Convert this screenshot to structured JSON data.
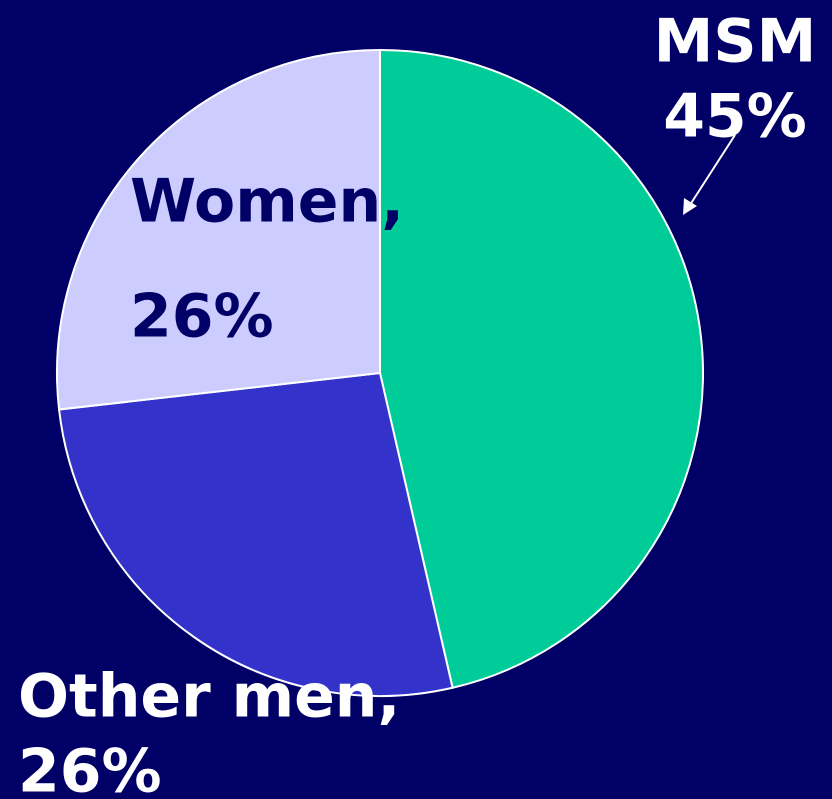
{
  "chart_data": {
    "type": "pie",
    "categories": [
      "MSM",
      "Other men,",
      "Women,"
    ],
    "values": [
      45,
      26,
      26
    ],
    "value_labels": [
      "45%",
      "26%",
      "26%"
    ],
    "colors": [
      "#00cc99",
      "#3333cc",
      "#ccccff"
    ]
  }
}
